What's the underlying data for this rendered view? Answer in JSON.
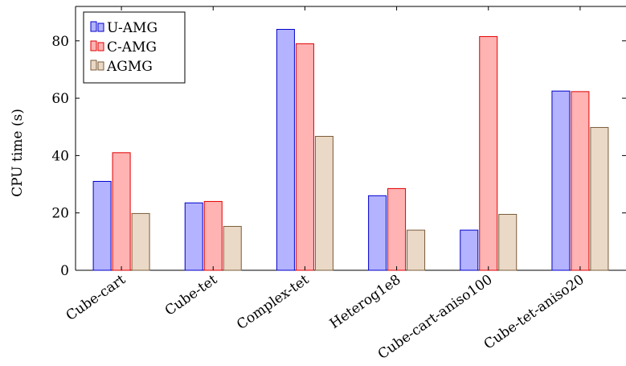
{
  "chart_data": {
    "type": "bar",
    "title": "",
    "xlabel": "",
    "ylabel": "CPU time (s)",
    "ylim": [
      0,
      92
    ],
    "yticks": [
      0,
      20,
      40,
      60,
      80
    ],
    "grid": false,
    "legend_position": "top-left",
    "categories": [
      "Cube-cart",
      "Cube-tet",
      "Complex-tet",
      "Heterog1e8",
      "Cube-cart-aniso100",
      "Cube-tet-aniso20"
    ],
    "series": [
      {
        "name": "U-AMG",
        "fill": "#b3b3ff",
        "stroke": "#0000cc",
        "values": [
          31,
          23.5,
          84,
          26,
          14,
          62.5
        ]
      },
      {
        "name": "C-AMG",
        "fill": "#ffb3b3",
        "stroke": "#e00000",
        "values": [
          41,
          24,
          79,
          28.5,
          81.5,
          62.3
        ]
      },
      {
        "name": "AGMG",
        "fill": "#ead9c6",
        "stroke": "#7a5c3a",
        "values": [
          19.8,
          15.3,
          46.7,
          14,
          19.5,
          49.8
        ]
      }
    ]
  }
}
